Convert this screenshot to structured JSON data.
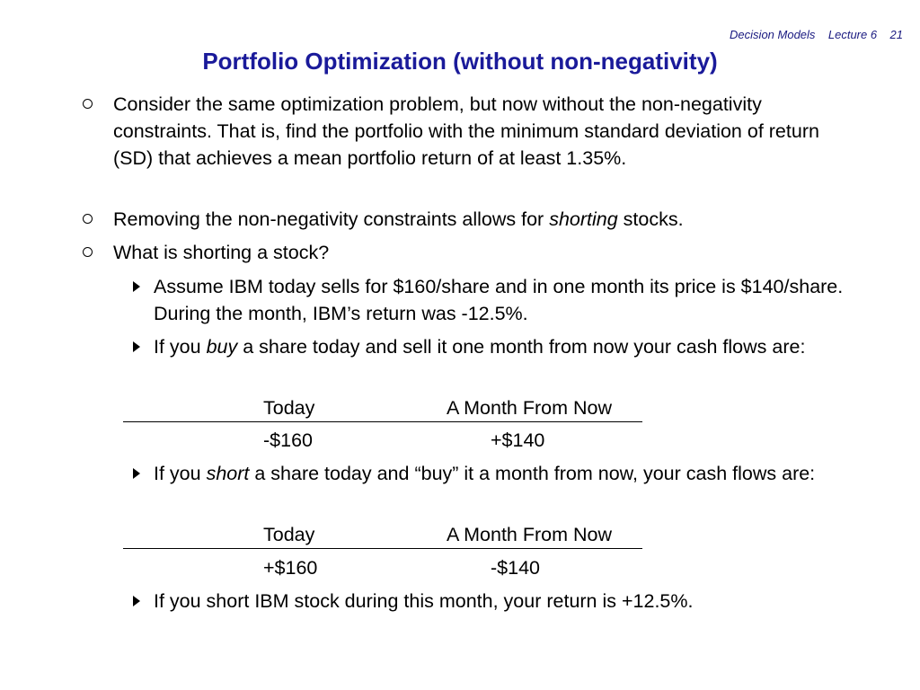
{
  "header": {
    "course": "Decision Models",
    "lecture": "Lecture 6",
    "slide_number": "21"
  },
  "title": "Portfolio Optimization (without non-negativity)",
  "bullets": [
    "Consider the same optimization problem, but now without the non-negativity constraints.  That is, find the portfolio with the minimum standard deviation of return (SD) that achieves a mean portfolio return of at least 1.35%.",
    {
      "before": "Removing the non-negativity constraints allows for ",
      "emphasis": "shorting",
      "after": " stocks."
    },
    "What is shorting a stock?"
  ],
  "subbullets": [
    "Assume IBM today sells for $160/share and in one month its price is $140/share.  During the month, IBM’s return was -12.5%.",
    {
      "before": "If you ",
      "emphasis": "buy",
      "after": " a share today and sell it one month from now your cash flows are:"
    },
    {
      "before": "If you ",
      "emphasis": "short",
      "after": " a share today and “buy” it a month from now, your cash flows are:"
    },
    "If you short IBM stock during this month, your return is +12.5%."
  ],
  "cashflow_headers": {
    "today": "Today",
    "month": "A Month From Now"
  },
  "cashflow_buy": {
    "today": "-$160",
    "month": "+$140"
  },
  "cashflow_short": {
    "today": "+$160",
    "month": "-$140"
  }
}
